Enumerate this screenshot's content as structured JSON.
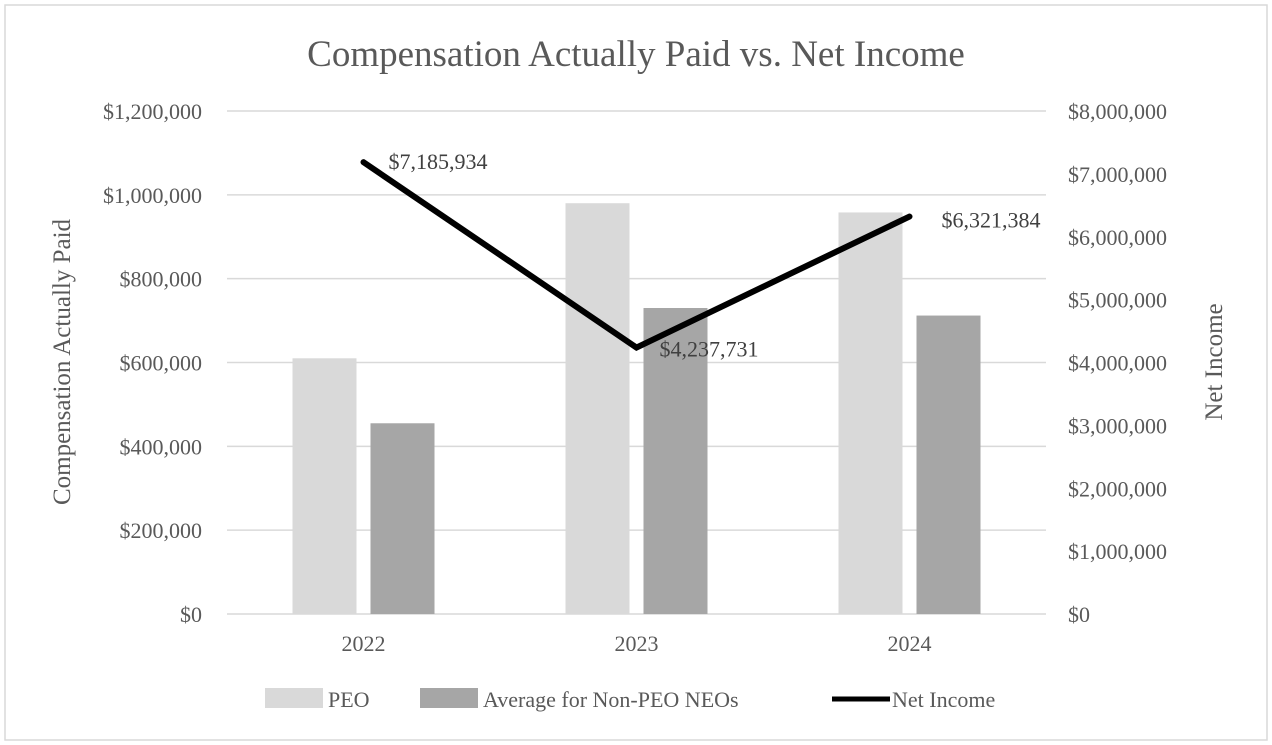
{
  "chart_data": {
    "type": "bar",
    "title": "Compensation Actually Paid vs. Net Income",
    "categories": [
      "2022",
      "2023",
      "2024"
    ],
    "ylabel": "Compensation Actually Paid",
    "y2label": "Net Income",
    "ylim": [
      0,
      1200000
    ],
    "y2lim": [
      0,
      8000000
    ],
    "y_ticks": [
      "$0",
      "$200,000",
      "$400,000",
      "$600,000",
      "$800,000",
      "$1,000,000",
      "$1,200,000"
    ],
    "y2_ticks": [
      "$0",
      "$1,000,000",
      "$2,000,000",
      "$3,000,000",
      "$4,000,000",
      "$5,000,000",
      "$6,000,000",
      "$7,000,000",
      "$8,000,000"
    ],
    "grid": true,
    "legend_position": "bottom",
    "series": [
      {
        "name": "PEO",
        "type": "bar",
        "axis": "left",
        "color": "#d9d9d9",
        "values": [
          610000,
          980000,
          958000
        ]
      },
      {
        "name": "Average for Non-PEO NEOs",
        "type": "bar",
        "axis": "left",
        "color": "#a6a6a6",
        "values": [
          455000,
          730000,
          712000
        ]
      },
      {
        "name": "Net Income",
        "type": "line",
        "axis": "right",
        "color": "#000000",
        "values": [
          7185934,
          4237731,
          6321384
        ]
      }
    ],
    "data_labels": [
      "$7,185,934",
      "$4,237,731",
      "$6,321,384"
    ]
  }
}
